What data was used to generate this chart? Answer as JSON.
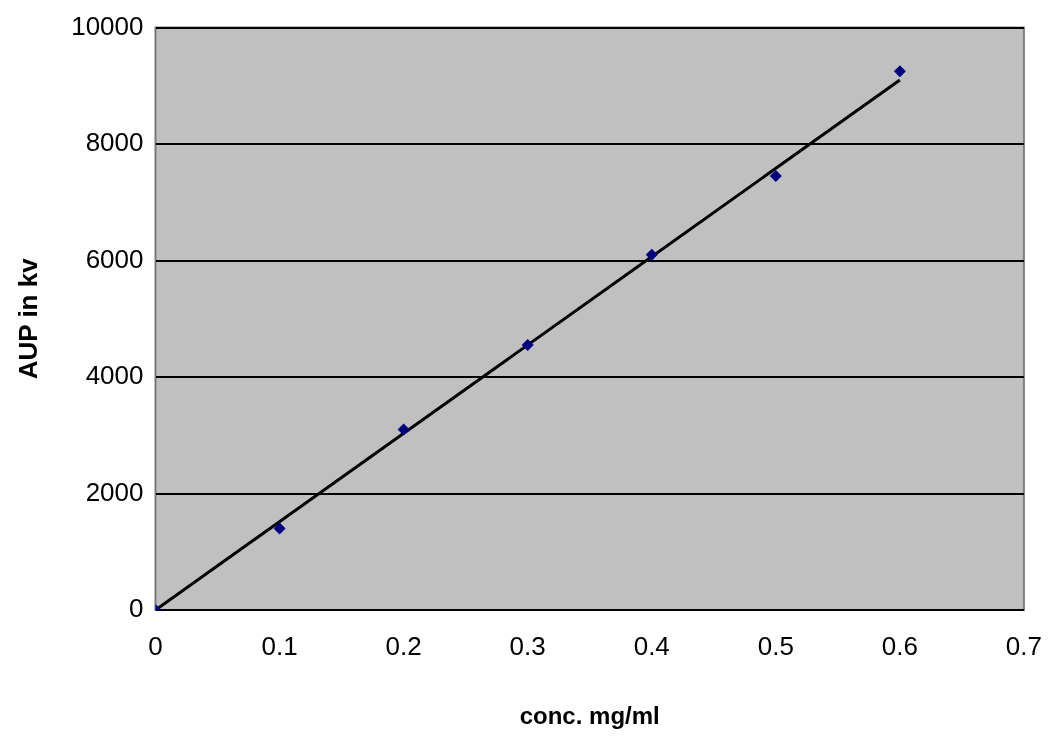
{
  "chart_data": {
    "type": "scatter",
    "xlabel": "conc. mg/ml",
    "ylabel": "AUP in kv",
    "x": [
      0,
      0.1,
      0.2,
      0.3,
      0.4,
      0.5,
      0.6
    ],
    "series": [
      {
        "type": "scatter",
        "color": "#000080",
        "values": [
          0,
          1400,
          3100,
          4550,
          6100,
          7450,
          9250
        ],
        "marker": "diamond"
      },
      {
        "type": "line",
        "color": "#000000",
        "x": [
          0,
          0.6
        ],
        "values": [
          0,
          9100
        ],
        "marker": "none",
        "line_style": "solid"
      }
    ],
    "xlim": [
      0,
      0.7
    ],
    "xticks": [
      0,
      0.1,
      0.2,
      0.3,
      0.4,
      0.5,
      0.6,
      0.7
    ],
    "ylim": [
      0,
      10000
    ],
    "yticks": [
      0,
      2000,
      4000,
      6000,
      8000,
      10000
    ],
    "grid": "y",
    "legend": false
  }
}
